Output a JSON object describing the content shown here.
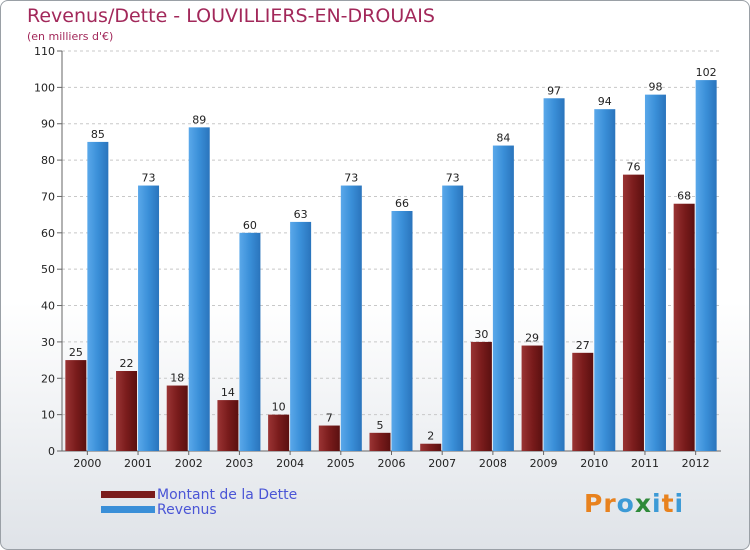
{
  "title": "Revenus/Dette - LOUVILLIERS-EN-DROUAIS",
  "subtitle": "(en milliers d'€)",
  "brand": "Proxiti",
  "colors": {
    "title": "#a2285a",
    "dette": "#7a1c1c",
    "revenus": "#3a8fd8",
    "axis_text": "#222222",
    "grid": "#c8c8c8"
  },
  "legend": [
    {
      "label": "Montant de la Dette",
      "color": "#7a1c1c"
    },
    {
      "label": "Revenus",
      "color": "#3a8fd8"
    }
  ],
  "chart_data": {
    "type": "bar",
    "categories": [
      "2000",
      "2001",
      "2002",
      "2003",
      "2004",
      "2005",
      "2006",
      "2007",
      "2008",
      "2009",
      "2010",
      "2011",
      "2012"
    ],
    "series": [
      {
        "name": "Montant de la Dette",
        "values": [
          25,
          22,
          18,
          14,
          10,
          7,
          5,
          2,
          30,
          29,
          27,
          76,
          68
        ]
      },
      {
        "name": "Revenus",
        "values": [
          85,
          73,
          89,
          60,
          63,
          73,
          66,
          73,
          84,
          97,
          94,
          98,
          102
        ]
      }
    ],
    "yticks": [
      0,
      10,
      20,
      30,
      40,
      50,
      60,
      70,
      80,
      90,
      100,
      110
    ],
    "ylim": [
      0,
      110
    ],
    "grid": true,
    "legend_position": "bottom-left"
  }
}
